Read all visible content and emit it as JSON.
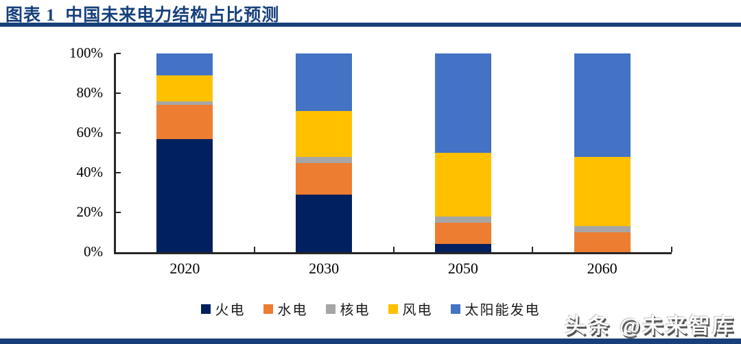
{
  "figure": {
    "title": "图表 1  中国未来电力结构占比预测",
    "watermark": "头条 @未来智库"
  },
  "colors": {
    "accent_navy": "#17407B",
    "axis": "#262626",
    "text": "#000000"
  },
  "chart_data": {
    "type": "bar",
    "stacked": true,
    "title": "中国未来电力结构占比预测",
    "categories": [
      "2020",
      "2030",
      "2050",
      "2060"
    ],
    "series": [
      {
        "name": "火电",
        "color": "#002060",
        "values": [
          57,
          29,
          4,
          0
        ]
      },
      {
        "name": "水电",
        "color": "#ED7D31",
        "values": [
          17,
          16,
          11,
          10
        ]
      },
      {
        "name": "核电",
        "color": "#A6A6A6",
        "values": [
          2,
          3,
          3,
          3
        ]
      },
      {
        "name": "风电",
        "color": "#FFC000",
        "values": [
          13,
          23,
          32,
          35
        ]
      },
      {
        "name": "太阳能发电",
        "color": "#4472C4",
        "values": [
          11,
          29,
          50,
          52
        ]
      }
    ],
    "unit": "%",
    "ylim": [
      0,
      100
    ],
    "yticks": [
      0,
      20,
      40,
      60,
      80,
      100
    ],
    "ytick_labels": [
      "0%",
      "20%",
      "40%",
      "60%",
      "80%",
      "100%"
    ],
    "xlabel": "",
    "ylabel": "",
    "grid": false,
    "legend_position": "bottom"
  }
}
